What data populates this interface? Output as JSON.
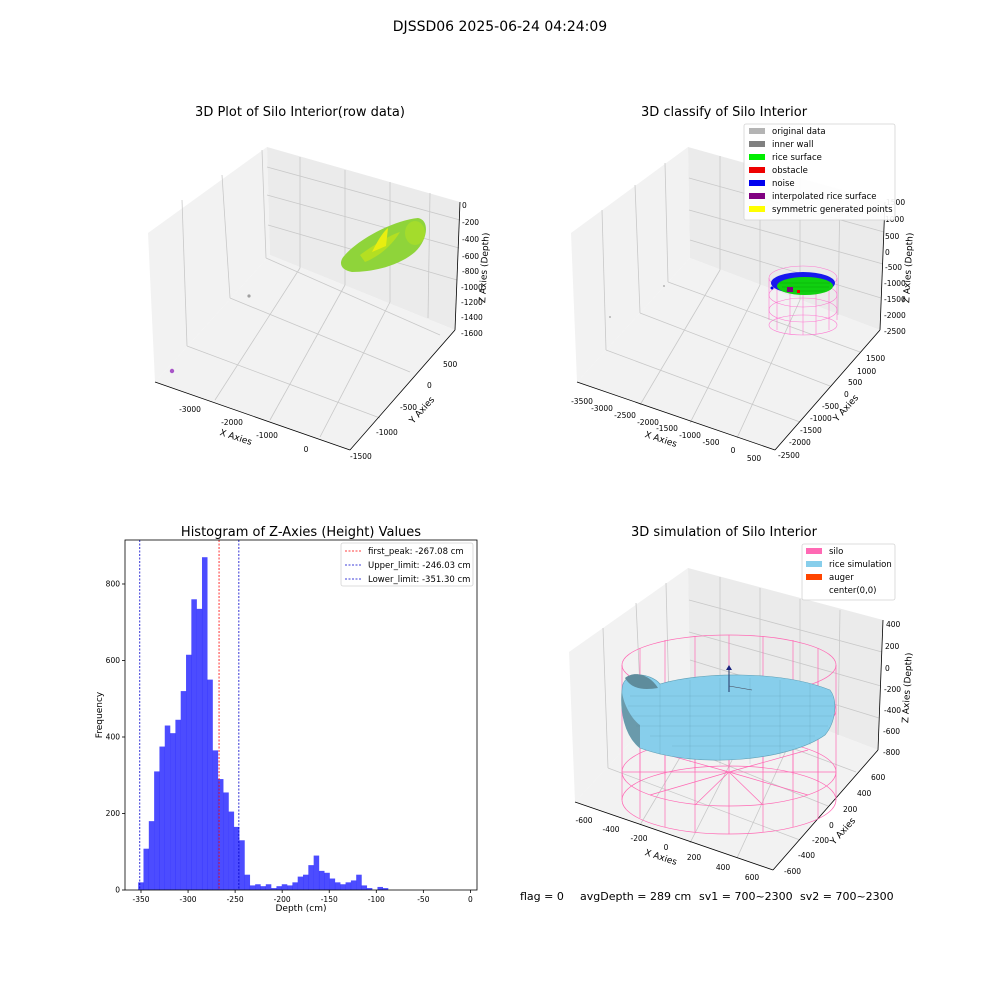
{
  "suptitle": "DJSSD06 2025-06-24 04:24:09",
  "chart_data": [
    {
      "type": "scatter",
      "title": "3D Plot of Silo Interior(row data)",
      "xlabel": "X Axies",
      "ylabel": "Y Axies",
      "zlabel": "Z Axies (Depth)",
      "x_ticks": [
        "-3000",
        "-2000",
        "-1000",
        "0"
      ],
      "y_ticks": [
        "500",
        "0",
        "-500",
        "-1000",
        "-1500"
      ],
      "z_ticks": [
        "0",
        "-200",
        "-400",
        "-600",
        "-800",
        "-1000",
        "-1200",
        "-1400",
        "-1600"
      ],
      "colors": {
        "surface": "#9acd32",
        "points": "#a855c8"
      }
    },
    {
      "type": "scatter",
      "title": "3D classify of Silo Interior",
      "xlabel": "X Axies",
      "ylabel": "Y Axies",
      "zlabel": "Z Axies (Depth)",
      "x_ticks": [
        "-3500",
        "-3000",
        "-2500",
        "-2000",
        "-1500",
        "-1000",
        "-500",
        "0",
        "500"
      ],
      "y_ticks": [
        "1500",
        "1000",
        "500",
        "0",
        "-500",
        "-1000",
        "-1500",
        "-2000",
        "-2500"
      ],
      "z_ticks": [
        "1500",
        "1000",
        "500",
        "0",
        "-500",
        "-1000",
        "-1500",
        "-2000",
        "-2500"
      ],
      "legend": [
        {
          "label": "original data",
          "color": "#b4b4b4"
        },
        {
          "label": "inner wall",
          "color": "#808080"
        },
        {
          "label": "rice surface",
          "color": "#00ee00"
        },
        {
          "label": "obstacle",
          "color": "#ee0000"
        },
        {
          "label": "noise",
          "color": "#0000ee"
        },
        {
          "label": "interpolated rice surface",
          "color": "#800080"
        },
        {
          "label": "symmetric generated points",
          "color": "#ffff00"
        }
      ],
      "legend_position": "upper-right"
    },
    {
      "type": "bar",
      "title": "Histogram of Z-Axies (Height) Values",
      "xlabel": "Depth (cm)",
      "ylabel": "Frequency",
      "xlim": [
        -367,
        7
      ],
      "ylim": [
        0,
        915
      ],
      "x_ticks": [
        -350,
        -300,
        -250,
        -200,
        -150,
        -100,
        -50,
        0
      ],
      "y_ticks": [
        0,
        200,
        400,
        600,
        800
      ],
      "bin_width": 5.65,
      "bin_start": -353,
      "values": [
        20,
        108,
        180,
        310,
        375,
        430,
        410,
        445,
        520,
        615,
        760,
        735,
        870,
        550,
        365,
        290,
        255,
        205,
        165,
        130,
        40,
        12,
        15,
        10,
        15,
        5,
        10,
        15,
        12,
        20,
        35,
        40,
        65,
        90,
        50,
        45,
        30,
        20,
        15,
        20,
        25,
        40,
        12,
        5,
        0,
        8,
        5
      ],
      "color": "#0000ff",
      "vlines": [
        {
          "label": "first_peak: -267.08 cm",
          "x": -267.08,
          "color": "#ff0000"
        },
        {
          "label": "Upper_limit: -246.03 cm",
          "x": -246.03,
          "color": "#0000cc"
        },
        {
          "label": "Lower_limit: -351.30 cm",
          "x": -351.3,
          "color": "#0000cc"
        }
      ],
      "legend_position": "upper-right"
    },
    {
      "type": "scatter",
      "title": "3D simulation of Silo Interior",
      "xlabel": "X Axies",
      "ylabel": "Y Axies",
      "zlabel": "Z Axies (Depth)",
      "x_ticks": [
        "-600",
        "-400",
        "-200",
        "0",
        "200",
        "400",
        "600"
      ],
      "y_ticks": [
        "600",
        "400",
        "200",
        "0",
        "-200",
        "-400",
        "-600"
      ],
      "z_ticks": [
        "400",
        "200",
        "0",
        "-200",
        "-400",
        "-600",
        "-800"
      ],
      "legend": [
        {
          "label": "silo",
          "color": "#ff69b4"
        },
        {
          "label": "rice simulation",
          "color": "#87ceeb"
        },
        {
          "label": "auger",
          "color": "#ff4500"
        },
        {
          "label": "center(0,0)",
          "color": "#ffffff"
        }
      ],
      "legend_position": "upper-right"
    }
  ],
  "status": {
    "flag": "flag = 0",
    "avg_depth": "avgDepth = 289 cm",
    "sv1": "sv1 = 700~2300",
    "sv2": "sv2 = 700~2300"
  }
}
